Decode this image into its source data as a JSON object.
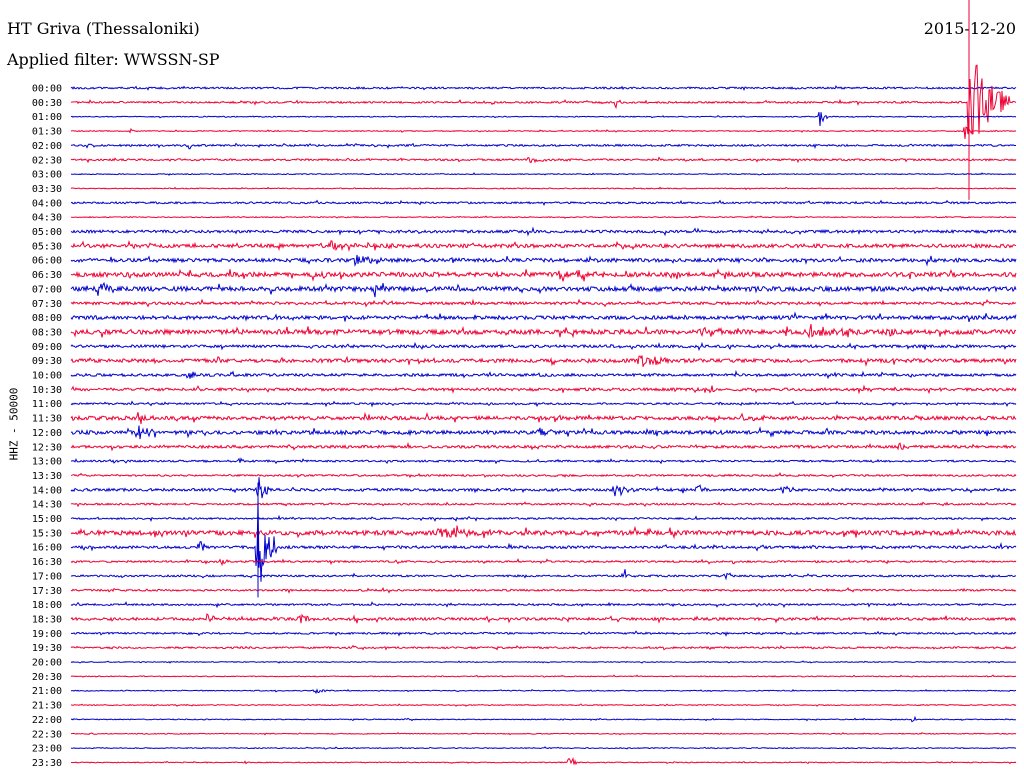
{
  "header": {
    "station": "HT Griva (Thessaloniki)",
    "filter": "Applied filter: WWSSN-SP",
    "date": "2015-12-20"
  },
  "chart_data": {
    "type": "line",
    "title": "HT Griva (Thessaloniki)",
    "subtitle": "Applied filter: WWSSN-SP",
    "date": "2015-12-20",
    "ylabel": "HHZ - 50000",
    "xlabel": "",
    "colors": {
      "even_rows": "#0000cc",
      "odd_rows": "#ee0033"
    },
    "rows": [
      "00:00",
      "00:30",
      "01:00",
      "01:30",
      "02:00",
      "02:30",
      "03:00",
      "03:30",
      "04:00",
      "04:30",
      "05:00",
      "05:30",
      "06:00",
      "06:30",
      "07:00",
      "07:30",
      "08:00",
      "08:30",
      "09:00",
      "09:30",
      "10:00",
      "10:30",
      "11:00",
      "11:30",
      "12:00",
      "12:30",
      "13:00",
      "13:30",
      "14:00",
      "14:30",
      "15:00",
      "15:30",
      "16:00",
      "16:30",
      "17:00",
      "17:30",
      "18:00",
      "18:30",
      "19:00",
      "19:30",
      "20:00",
      "20:30",
      "21:00",
      "21:30",
      "22:00",
      "22:30",
      "23:00",
      "23:30"
    ],
    "noise_level": [
      2,
      2,
      1,
      1,
      2,
      2,
      1,
      1,
      2,
      1,
      3,
      4,
      4,
      5,
      5,
      3,
      4,
      5,
      3,
      4,
      3,
      3,
      2,
      4,
      4,
      3,
      2,
      2,
      3,
      2,
      2,
      5,
      3,
      2,
      2,
      2,
      2,
      3,
      2,
      2,
      1,
      1,
      1,
      1,
      1,
      1,
      1,
      1
    ],
    "events": [
      {
        "row": 1,
        "x": 970,
        "amp": 60,
        "dur": 40
      },
      {
        "row": 1,
        "x": 616,
        "amp": 6,
        "dur": 6
      },
      {
        "row": 2,
        "x": 820,
        "amp": 10,
        "dur": 8
      },
      {
        "row": 3,
        "x": 131,
        "amp": 4,
        "dur": 4
      },
      {
        "row": 3,
        "x": 965,
        "amp": 8,
        "dur": 6
      },
      {
        "row": 4,
        "x": 189,
        "amp": 6,
        "dur": 4
      },
      {
        "row": 5,
        "x": 530,
        "amp": 3,
        "dur": 40
      },
      {
        "row": 11,
        "x": 330,
        "amp": 5,
        "dur": 30
      },
      {
        "row": 12,
        "x": 355,
        "amp": 7,
        "dur": 30
      },
      {
        "row": 13,
        "x": 560,
        "amp": 5,
        "dur": 60
      },
      {
        "row": 14,
        "x": 98,
        "amp": 7,
        "dur": 20
      },
      {
        "row": 14,
        "x": 375,
        "amp": 8,
        "dur": 10
      },
      {
        "row": 17,
        "x": 700,
        "amp": 6,
        "dur": 30
      },
      {
        "row": 17,
        "x": 810,
        "amp": 6,
        "dur": 60
      },
      {
        "row": 17,
        "x": 888,
        "amp": 8,
        "dur": 8
      },
      {
        "row": 19,
        "x": 640,
        "amp": 9,
        "dur": 30
      },
      {
        "row": 20,
        "x": 189,
        "amp": 8,
        "dur": 6
      },
      {
        "row": 21,
        "x": 711,
        "amp": 7,
        "dur": 6
      },
      {
        "row": 23,
        "x": 140,
        "amp": 9,
        "dur": 14
      },
      {
        "row": 23,
        "x": 740,
        "amp": 5,
        "dur": 30
      },
      {
        "row": 24,
        "x": 138,
        "amp": 10,
        "dur": 20
      },
      {
        "row": 24,
        "x": 540,
        "amp": 6,
        "dur": 6
      },
      {
        "row": 25,
        "x": 900,
        "amp": 5,
        "dur": 10
      },
      {
        "row": 26,
        "x": 238,
        "amp": 5,
        "dur": 6
      },
      {
        "row": 28,
        "x": 258,
        "amp": 20,
        "dur": 10
      },
      {
        "row": 28,
        "x": 615,
        "amp": 8,
        "dur": 20
      },
      {
        "row": 28,
        "x": 697,
        "amp": 7,
        "dur": 10
      },
      {
        "row": 28,
        "x": 783,
        "amp": 7,
        "dur": 10
      },
      {
        "row": 31,
        "x": 440,
        "amp": 6,
        "dur": 60
      },
      {
        "row": 32,
        "x": 258,
        "amp": 48,
        "dur": 18
      },
      {
        "row": 32,
        "x": 200,
        "amp": 5,
        "dur": 14
      },
      {
        "row": 33,
        "x": 222,
        "amp": 5,
        "dur": 6
      },
      {
        "row": 34,
        "x": 625,
        "amp": 7,
        "dur": 6
      },
      {
        "row": 34,
        "x": 725,
        "amp": 7,
        "dur": 6
      },
      {
        "row": 35,
        "x": 116,
        "amp": 4,
        "dur": 4
      },
      {
        "row": 37,
        "x": 206,
        "amp": 6,
        "dur": 20
      },
      {
        "row": 37,
        "x": 300,
        "amp": 5,
        "dur": 20
      },
      {
        "row": 37,
        "x": 355,
        "amp": 5,
        "dur": 10
      },
      {
        "row": 42,
        "x": 315,
        "amp": 3,
        "dur": 20
      },
      {
        "row": 44,
        "x": 912,
        "amp": 7,
        "dur": 4
      },
      {
        "row": 47,
        "x": 570,
        "amp": 9,
        "dur": 6
      }
    ],
    "grid": false,
    "legend": "none"
  }
}
